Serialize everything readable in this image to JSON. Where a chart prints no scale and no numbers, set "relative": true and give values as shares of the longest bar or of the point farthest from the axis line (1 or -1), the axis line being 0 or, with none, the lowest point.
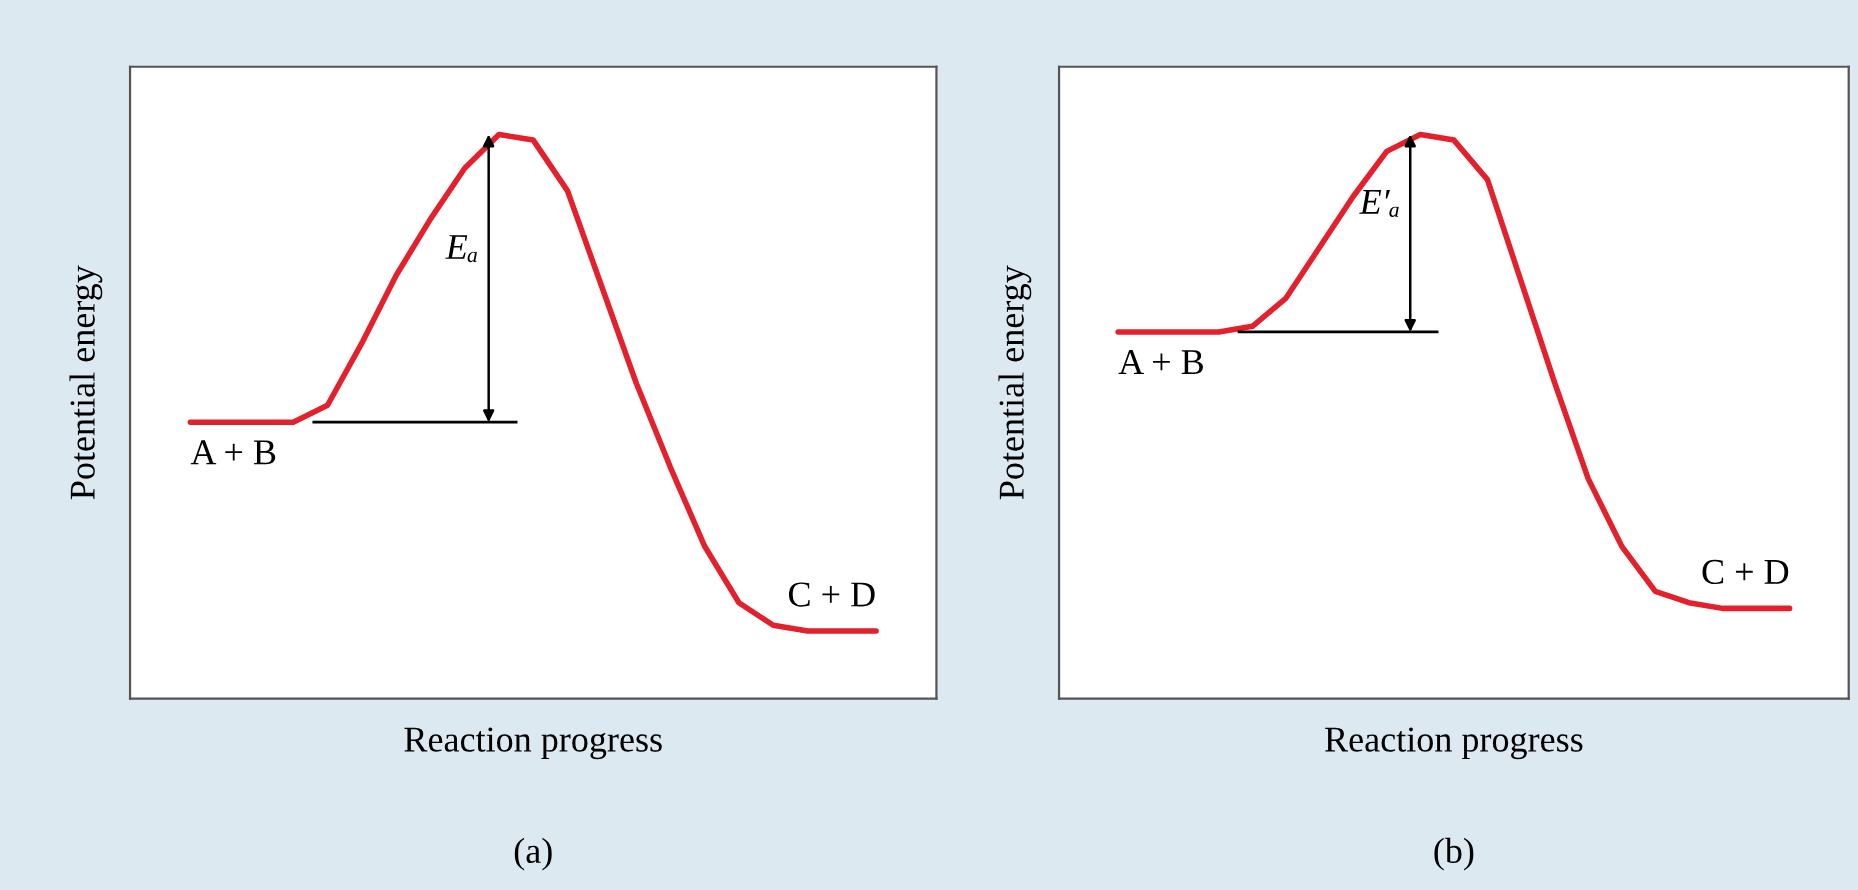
{
  "chart_data": [
    {
      "type": "line",
      "relative": true,
      "xlabel": "Reaction progress",
      "ylabel": "Potential energy",
      "legend": false,
      "marker": "none",
      "line_style": "solid",
      "categories": [
        null,
        null,
        null,
        null,
        null,
        null,
        null,
        null,
        null,
        null,
        null,
        null,
        null,
        null,
        null,
        null,
        null,
        null,
        null,
        null,
        null
      ],
      "series": [
        {
          "color": "#e3202b",
          "values": [
            0.49,
            0.49,
            0.49,
            0.49,
            0.52,
            0.63,
            0.75,
            0.85,
            0.94,
            1,
            0.99,
            0.9,
            0.73,
            0.56,
            0.41,
            0.27,
            0.17,
            0.13,
            0.12,
            0.12,
            0.12
          ]
        }
      ],
      "ref_lines": [
        {
          "axis": "y",
          "value": 0.49,
          "color": "#000000"
        }
      ],
      "annotations": [
        "A + B",
        "C + D",
        "Eₐ",
        "(a)"
      ]
    },
    {
      "type": "line",
      "relative": true,
      "xlabel": "Reaction progress",
      "ylabel": "Potential energy",
      "legend": false,
      "marker": "none",
      "line_style": "solid",
      "categories": [
        null,
        null,
        null,
        null,
        null,
        null,
        null,
        null,
        null,
        null,
        null,
        null,
        null,
        null,
        null,
        null,
        null,
        null,
        null,
        null,
        null
      ],
      "series": [
        {
          "color": "#e3202b",
          "values": [
            0.65,
            0.65,
            0.65,
            0.65,
            0.66,
            0.71,
            0.8,
            0.89,
            0.97,
            1,
            0.99,
            0.92,
            0.74,
            0.56,
            0.39,
            0.27,
            0.19,
            0.17,
            0.16,
            0.16,
            0.16
          ]
        }
      ],
      "ref_lines": [
        {
          "axis": "y",
          "value": 0.65,
          "color": "#000000"
        }
      ],
      "annotations": [
        "A + B",
        "C + D",
        "E′ₐ",
        "(b)"
      ]
    }
  ]
}
